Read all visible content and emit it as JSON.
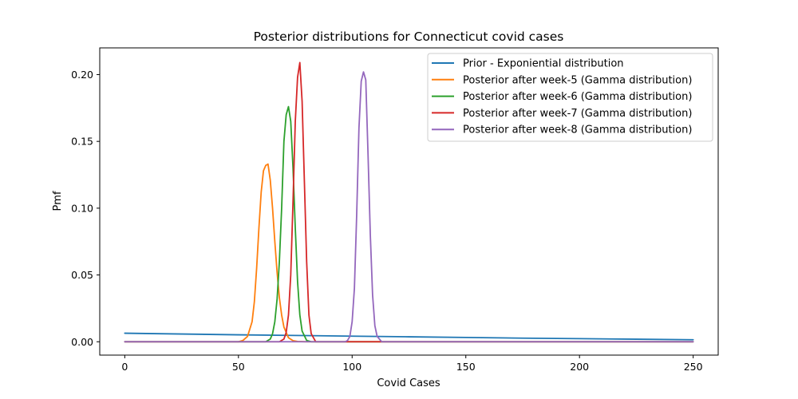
{
  "chart_data": {
    "type": "line",
    "title": "Posterior distributions for Connecticut covid cases",
    "xlabel": "Covid Cases",
    "ylabel": "Pmf",
    "xlim": [
      -11,
      261
    ],
    "ylim": [
      -0.01,
      0.22
    ],
    "xticks": [
      0,
      50,
      100,
      150,
      200,
      250
    ],
    "xtick_labels": [
      "0",
      "50",
      "100",
      "150",
      "200",
      "250"
    ],
    "yticks": [
      0.0,
      0.05,
      0.1,
      0.15,
      0.2
    ],
    "ytick_labels": [
      "0.00",
      "0.05",
      "0.10",
      "0.15",
      "0.20"
    ],
    "grid": false,
    "legend_position": "top-right",
    "series": [
      {
        "name": "Prior - Exponiential distribution",
        "color": "#1f77b4",
        "x": [
          0,
          25,
          50,
          75,
          100,
          125,
          150,
          175,
          200,
          225,
          250
        ],
        "y": [
          0.0064,
          0.0058,
          0.0052,
          0.0047,
          0.0042,
          0.0037,
          0.0032,
          0.0027,
          0.0023,
          0.0019,
          0.0015
        ]
      },
      {
        "name": "Posterior after week-5 (Gamma distribution)",
        "color": "#ff7f0e",
        "x": [
          0,
          50,
          52,
          54,
          56,
          57,
          58,
          59,
          60,
          61,
          62,
          63,
          64,
          65,
          66,
          67,
          68,
          69,
          70,
          72,
          74,
          76,
          80,
          250
        ],
        "y": [
          0,
          0,
          0.001,
          0.004,
          0.015,
          0.03,
          0.055,
          0.085,
          0.112,
          0.128,
          0.132,
          0.133,
          0.121,
          0.1,
          0.075,
          0.052,
          0.033,
          0.02,
          0.011,
          0.003,
          0.0008,
          0.0002,
          0,
          0
        ]
      },
      {
        "name": "Posterior after week-6 (Gamma distribution)",
        "color": "#2ca02c",
        "x": [
          0,
          62,
          64,
          65,
          66,
          67,
          68,
          69,
          70,
          71,
          72,
          73,
          74,
          75,
          76,
          77,
          78,
          80,
          82,
          250
        ],
        "y": [
          0,
          0,
          0.002,
          0.006,
          0.015,
          0.032,
          0.06,
          0.1,
          0.15,
          0.17,
          0.176,
          0.165,
          0.13,
          0.085,
          0.045,
          0.02,
          0.008,
          0.001,
          0,
          0
        ]
      },
      {
        "name": "Posterior after week-7 (Gamma distribution)",
        "color": "#d62728",
        "x": [
          0,
          68,
          70,
          71,
          72,
          73,
          74,
          75,
          76,
          77,
          78,
          79,
          80,
          81,
          82,
          84,
          250
        ],
        "y": [
          0,
          0,
          0.002,
          0.007,
          0.02,
          0.05,
          0.105,
          0.165,
          0.198,
          0.209,
          0.18,
          0.12,
          0.06,
          0.02,
          0.006,
          0,
          0
        ]
      },
      {
        "name": "Posterior after week-8 (Gamma distribution)",
        "color": "#9467bd",
        "x": [
          0,
          97,
          98,
          99,
          100,
          101,
          102,
          103,
          104,
          105,
          106,
          107,
          108,
          109,
          110,
          111,
          113,
          250
        ],
        "y": [
          0,
          0,
          0.001,
          0.004,
          0.015,
          0.04,
          0.095,
          0.16,
          0.195,
          0.202,
          0.196,
          0.14,
          0.08,
          0.035,
          0.012,
          0.004,
          0,
          0
        ]
      }
    ]
  }
}
